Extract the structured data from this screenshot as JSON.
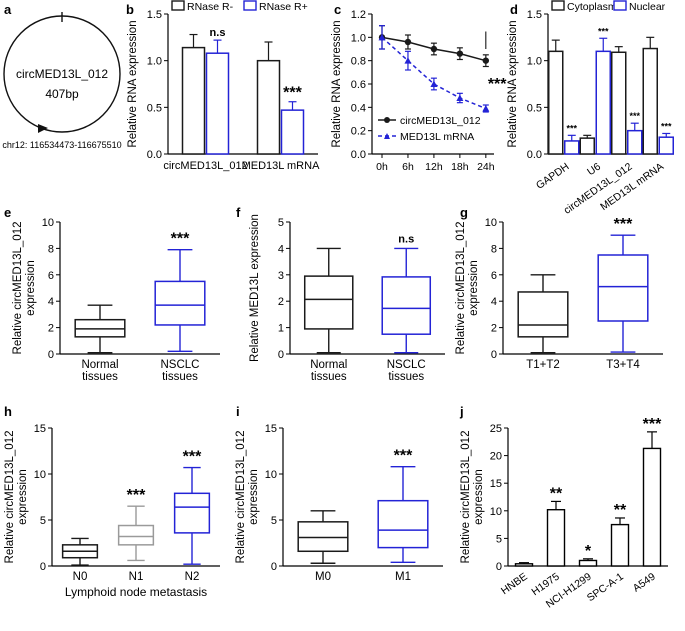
{
  "panels": {
    "a": {
      "label": "a",
      "circ_name": "circMED13L_012",
      "length": "407bp",
      "locus": "chr12: 116534473-116675510"
    },
    "b": {
      "label": "b"
    },
    "c": {
      "label": "c"
    },
    "d": {
      "label": "d"
    },
    "e": {
      "label": "e"
    },
    "f": {
      "label": "f"
    },
    "g": {
      "label": "g"
    },
    "h": {
      "label": "h"
    },
    "i": {
      "label": "i"
    },
    "j": {
      "label": "j"
    }
  },
  "colors": {
    "black": "#1a1a1a",
    "blue": "#2323d6",
    "gray": "#9a9a9a"
  },
  "chart_data": [
    {
      "id": "b",
      "type": "bar",
      "ylabel": "Relative RNA expression",
      "ylim": [
        0,
        1.5
      ],
      "yticks": [
        0.0,
        0.5,
        1.0,
        1.5
      ],
      "categories": [
        "circMED13L_012",
        "MED13L mRNA"
      ],
      "series": [
        {
          "name": "RNase R-",
          "color": "#1a1a1a",
          "values": [
            1.14,
            1.0
          ],
          "errors": [
            0.14,
            0.2
          ]
        },
        {
          "name": "RNase R+",
          "color": "#2323d6",
          "values": [
            1.08,
            0.47
          ],
          "errors": [
            0.14,
            0.09
          ]
        }
      ],
      "annotations": [
        {
          "text": "n.s",
          "category": 0,
          "series": 1,
          "size": 11
        },
        {
          "text": "***",
          "category": 1,
          "series": 1,
          "size": 16
        }
      ]
    },
    {
      "id": "c",
      "type": "line",
      "ylabel": "Relative RNA expression",
      "ylim": [
        0,
        1.2
      ],
      "yticks": [
        0.0,
        0.2,
        0.4,
        0.6,
        0.8,
        1.0,
        1.2
      ],
      "x": [
        "0h",
        "6h",
        "12h",
        "18h",
        "24h"
      ],
      "series": [
        {
          "name": "circMED13L_012",
          "color": "#1a1a1a",
          "dashed": false,
          "values": [
            1.0,
            0.96,
            0.9,
            0.86,
            0.8
          ],
          "errors": [
            0.1,
            0.06,
            0.05,
            0.05,
            0.05
          ]
        },
        {
          "name": "MED13L mRNA",
          "color": "#2323d6",
          "dashed": true,
          "values": [
            1.0,
            0.8,
            0.6,
            0.48,
            0.39
          ],
          "errors": [
            0.1,
            0.08,
            0.05,
            0.04,
            0.03
          ]
        }
      ],
      "annotations": [
        {
          "text": "***",
          "x_index": 4,
          "value": 0.6
        }
      ]
    },
    {
      "id": "d",
      "type": "bar",
      "ylabel": "Relative RNA expression",
      "ylim": [
        0,
        1.5
      ],
      "yticks": [
        0.0,
        0.5,
        1.0,
        1.5
      ],
      "categories": [
        "GAPDH",
        "U6",
        "circMED13L_012",
        "MED13L mRNA"
      ],
      "series": [
        {
          "name": "Cytoplasm",
          "color": "#1a1a1a",
          "values": [
            1.1,
            0.17,
            1.09,
            1.13
          ],
          "errors": [
            0.12,
            0.03,
            0.06,
            0.12
          ]
        },
        {
          "name": "Nuclear",
          "color": "#2323d6",
          "values": [
            0.14,
            1.1,
            0.25,
            0.18
          ],
          "errors": [
            0.06,
            0.14,
            0.08,
            0.04
          ]
        }
      ],
      "annotations": [
        {
          "text": "***",
          "category": 0,
          "series": 1
        },
        {
          "text": "***",
          "category": 1,
          "series": 1
        },
        {
          "text": "***",
          "category": 2,
          "series": 1
        },
        {
          "text": "***",
          "category": 3,
          "series": 1
        }
      ]
    },
    {
      "id": "e",
      "type": "box",
      "ylabel": [
        "Relative circMED13L_012",
        "expression"
      ],
      "ylim": [
        0,
        10
      ],
      "yticks": [
        0,
        2,
        4,
        6,
        8,
        10
      ],
      "categories": [
        "Normal\ntissues",
        "NSCLC\ntissues"
      ],
      "boxes": [
        {
          "min": 0.1,
          "q1": 1.3,
          "median": 1.9,
          "q3": 2.6,
          "max": 3.7,
          "color": "#1a1a1a"
        },
        {
          "min": 0.2,
          "q1": 2.2,
          "median": 3.7,
          "q3": 5.5,
          "max": 7.9,
          "color": "#2323d6"
        }
      ],
      "annotations": [
        {
          "text": "***",
          "category": 1
        }
      ]
    },
    {
      "id": "f",
      "type": "box",
      "ylabel": [
        "Relative MED13L expression"
      ],
      "ylim": [
        0,
        5
      ],
      "yticks": [
        0,
        1,
        2,
        3,
        4,
        5
      ],
      "categories": [
        "Normal\ntissues",
        "NSCLC\ntissues"
      ],
      "boxes": [
        {
          "min": 0.05,
          "q1": 0.95,
          "median": 2.07,
          "q3": 2.95,
          "max": 4.0,
          "color": "#1a1a1a"
        },
        {
          "min": 0.05,
          "q1": 0.75,
          "median": 1.73,
          "q3": 2.92,
          "max": 4.0,
          "color": "#2323d6"
        }
      ],
      "annotations": [
        {
          "text": "n.s",
          "category": 1,
          "size": 11
        }
      ]
    },
    {
      "id": "g",
      "type": "box",
      "ylabel": [
        "Relative circMED13L_012",
        "expression"
      ],
      "ylim": [
        0,
        10
      ],
      "yticks": [
        0,
        2,
        4,
        6,
        8,
        10
      ],
      "categories": [
        "T1+T2",
        "T3+T4"
      ],
      "boxes": [
        {
          "min": 0.1,
          "q1": 1.3,
          "median": 2.2,
          "q3": 4.7,
          "max": 6.0,
          "color": "#1a1a1a"
        },
        {
          "min": 0.15,
          "q1": 2.5,
          "median": 5.1,
          "q3": 7.5,
          "max": 9.0,
          "color": "#2323d6"
        }
      ],
      "annotations": [
        {
          "text": "***",
          "category": 1
        }
      ]
    },
    {
      "id": "h",
      "type": "box",
      "ylabel": [
        "Relative circMED13L_012",
        "expression"
      ],
      "xlabel": "Lymphoid node metastasis",
      "ylim": [
        0,
        15
      ],
      "yticks": [
        0,
        5,
        10,
        15
      ],
      "categories": [
        "N0",
        "N1",
        "N2"
      ],
      "boxes": [
        {
          "min": 0.1,
          "q1": 0.9,
          "median": 1.6,
          "q3": 2.3,
          "max": 3.0,
          "color": "#1a1a1a"
        },
        {
          "min": 0.6,
          "q1": 2.3,
          "median": 3.2,
          "q3": 4.4,
          "max": 6.5,
          "color": "#9a9a9a"
        },
        {
          "min": 0.2,
          "q1": 3.6,
          "median": 6.4,
          "q3": 7.9,
          "max": 10.7,
          "color": "#2323d6"
        }
      ],
      "annotations": [
        {
          "text": "***",
          "category": 1
        },
        {
          "text": "***",
          "category": 2
        }
      ]
    },
    {
      "id": "i",
      "type": "box",
      "ylabel": [
        "Relative circMED13L_012",
        "expression"
      ],
      "ylim": [
        0,
        15
      ],
      "yticks": [
        0,
        5,
        10,
        15
      ],
      "categories": [
        "M0",
        "M1"
      ],
      "boxes": [
        {
          "min": 0.3,
          "q1": 1.6,
          "median": 3.1,
          "q3": 4.8,
          "max": 6.0,
          "color": "#1a1a1a"
        },
        {
          "min": 0.4,
          "q1": 2.0,
          "median": 3.9,
          "q3": 7.1,
          "max": 10.8,
          "color": "#2323d6"
        }
      ],
      "annotations": [
        {
          "text": "***",
          "category": 1
        }
      ]
    },
    {
      "id": "j",
      "type": "bar",
      "ylabel": [
        "Relative circMED13L_012",
        "expression"
      ],
      "ylim": [
        0,
        25
      ],
      "yticks": [
        0,
        5,
        10,
        15,
        20,
        25
      ],
      "categories": [
        "HNBE",
        "H1975",
        "NCI-H1299",
        "SPC-A-1",
        "A549"
      ],
      "values": [
        0.4,
        10.2,
        1.0,
        7.5,
        21.3
      ],
      "errors": [
        0.2,
        1.5,
        0.3,
        1.2,
        3.0
      ],
      "annotations": [
        {
          "text": "",
          "category": 0
        },
        {
          "text": "**",
          "category": 1
        },
        {
          "text": "*",
          "category": 2
        },
        {
          "text": "**",
          "category": 3
        },
        {
          "text": "***",
          "category": 4
        }
      ]
    }
  ]
}
